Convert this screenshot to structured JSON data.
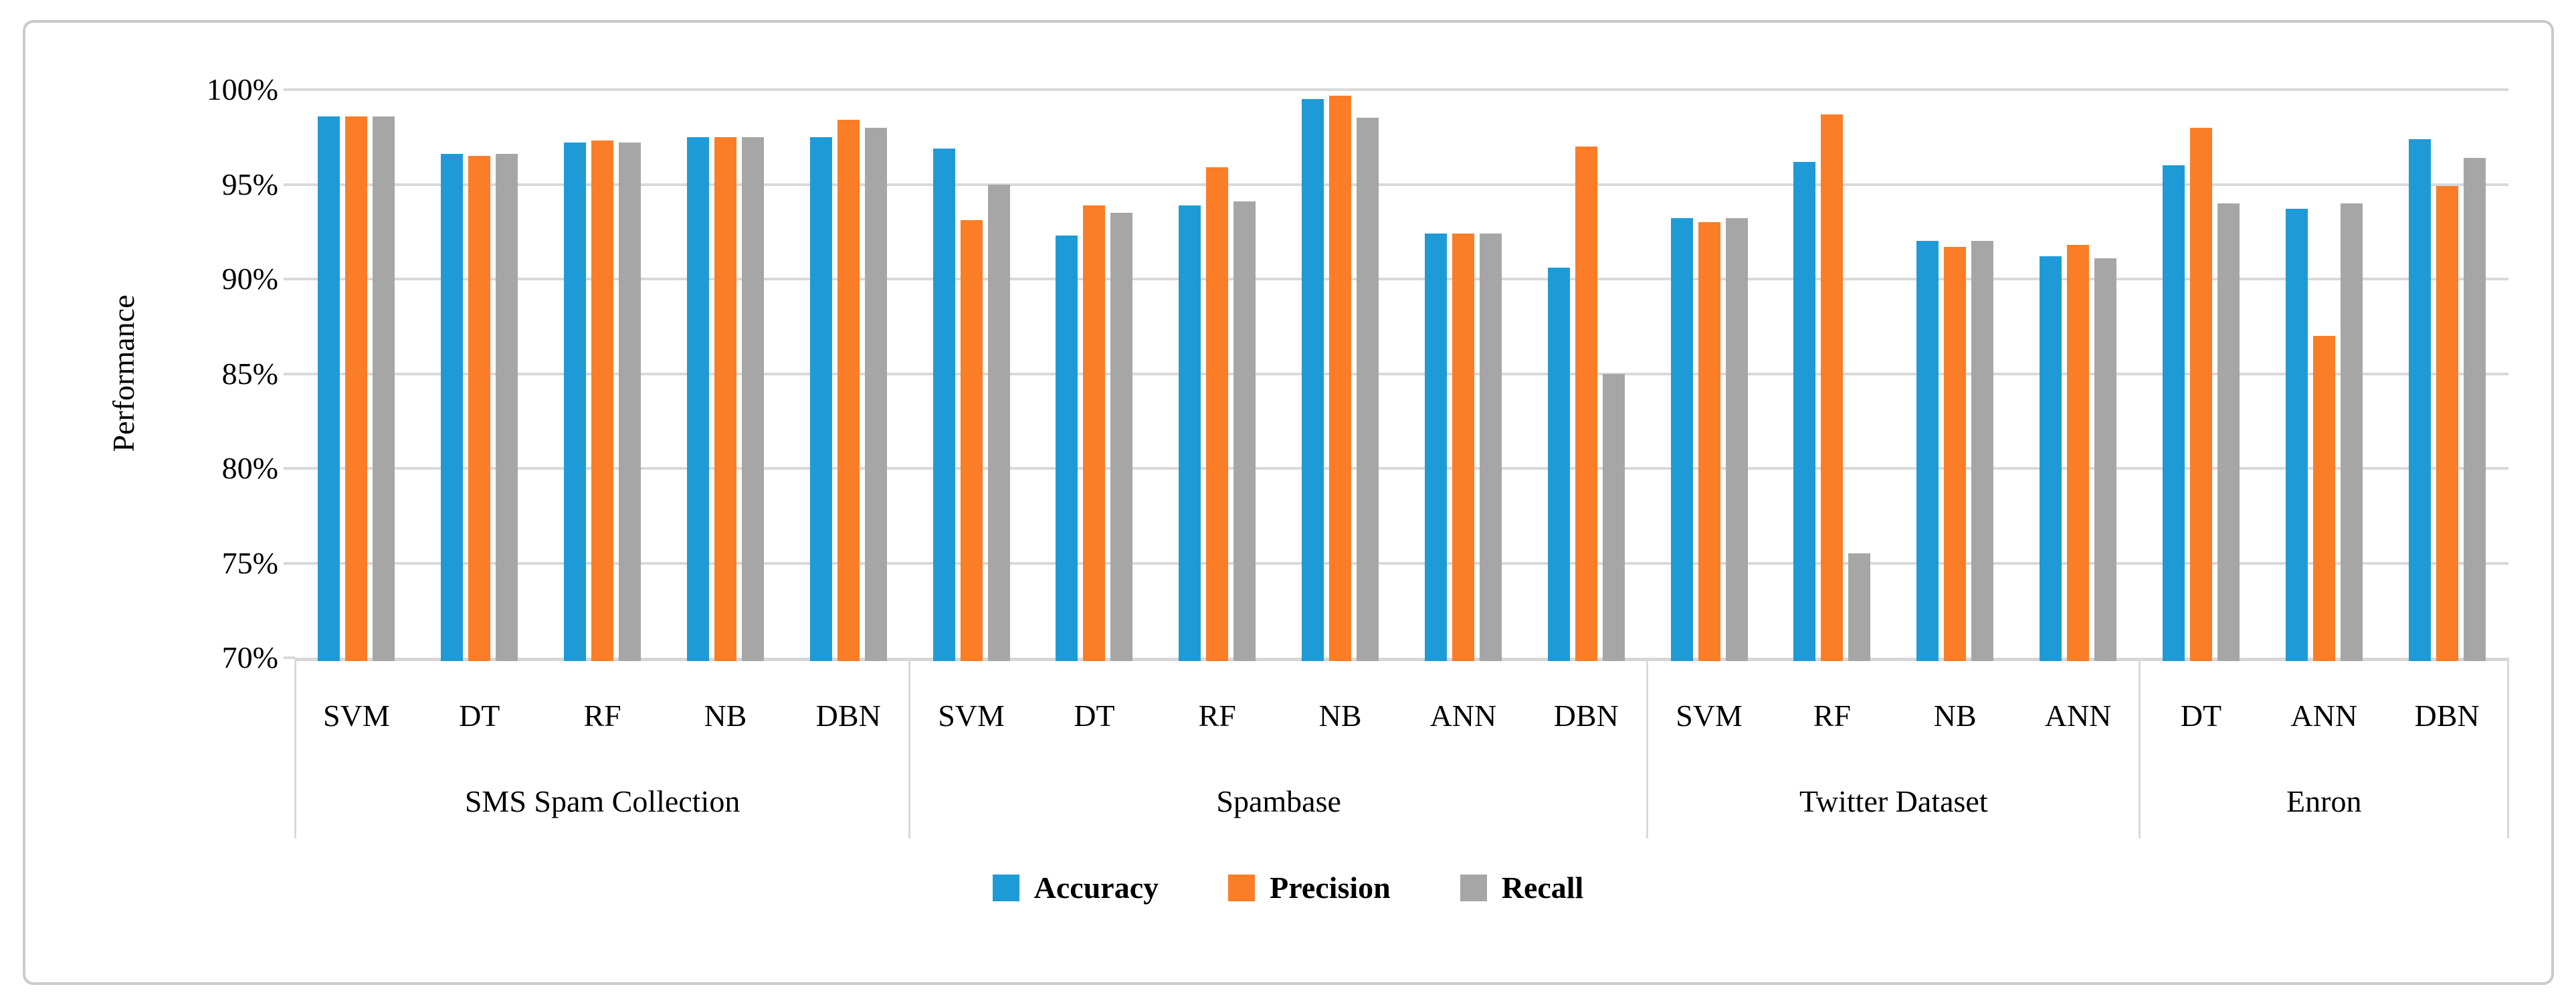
{
  "figure": {
    "y_axis_title": "Performance"
  },
  "chart_data": {
    "type": "bar",
    "title": "",
    "xlabel": "",
    "ylabel": "Performance",
    "ylim": [
      70,
      100
    ],
    "ytick_step": 5,
    "ytick_labels": [
      "100%",
      "95%",
      "90%",
      "85%",
      "80%",
      "75%",
      "70%"
    ],
    "grid": true,
    "legend_position": "bottom-center",
    "series_names": [
      "Accuracy",
      "Precision",
      "Recall"
    ],
    "series_colors": [
      "#1E9BD7",
      "#FB7D27",
      "#A6A6A6"
    ],
    "gridline_color": "#D9D9D9",
    "groups": [
      {
        "dataset": "SMS Spam Collection",
        "algorithms": [
          "SVM",
          "DT",
          "RF",
          "NB",
          "DBN"
        ],
        "series": [
          {
            "name": "Accuracy",
            "values": [
              98.6,
              96.6,
              97.2,
              97.5,
              97.5
            ]
          },
          {
            "name": "Precision",
            "values": [
              98.6,
              96.5,
              97.3,
              97.5,
              98.4
            ]
          },
          {
            "name": "Recall",
            "values": [
              98.6,
              96.6,
              97.2,
              97.5,
              98.0
            ]
          }
        ]
      },
      {
        "dataset": "Spambase",
        "algorithms": [
          "SVM",
          "DT",
          "RF",
          "NB",
          "ANN",
          "DBN"
        ],
        "series": [
          {
            "name": "Accuracy",
            "values": [
              96.9,
              92.3,
              93.9,
              99.5,
              92.4,
              90.6
            ]
          },
          {
            "name": "Precision",
            "values": [
              93.1,
              93.9,
              95.9,
              99.7,
              92.4,
              97.0
            ]
          },
          {
            "name": "Recall",
            "values": [
              95.0,
              93.5,
              94.1,
              98.5,
              92.4,
              85.0
            ]
          }
        ]
      },
      {
        "dataset": "Twitter Dataset",
        "algorithms": [
          "SVM",
          "RF",
          "NB",
          "ANN"
        ],
        "series": [
          {
            "name": "Accuracy",
            "values": [
              93.2,
              96.2,
              92.0,
              91.2
            ]
          },
          {
            "name": "Precision",
            "values": [
              93.0,
              98.7,
              91.7,
              91.8
            ]
          },
          {
            "name": "Recall",
            "values": [
              93.2,
              75.5,
              92.0,
              91.1
            ]
          }
        ]
      },
      {
        "dataset": "Enron",
        "algorithms": [
          "DT",
          "ANN",
          "DBN"
        ],
        "series": [
          {
            "name": "Accuracy",
            "values": [
              96.0,
              93.7,
              97.4
            ]
          },
          {
            "name": "Precision",
            "values": [
              98.0,
              87.0,
              94.9
            ]
          },
          {
            "name": "Recall",
            "values": [
              94.0,
              94.0,
              96.4
            ]
          }
        ]
      }
    ]
  }
}
